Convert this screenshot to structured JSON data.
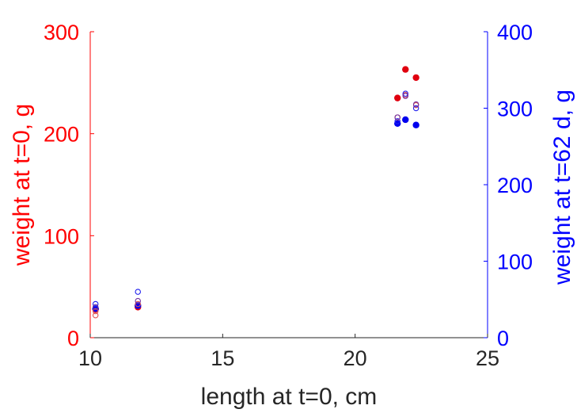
{
  "chart_data": {
    "type": "scatter",
    "title": "",
    "xlabel": "length at t=0, cm",
    "ylabel_left": "weight at t=0, g",
    "ylabel_right": "weight at t=62 d, g",
    "xlim": [
      10,
      25
    ],
    "ylim_left": [
      0,
      300
    ],
    "ylim_right": [
      0,
      400
    ],
    "x_ticks": [
      10,
      15,
      20,
      25
    ],
    "y_ticks_left": [
      0,
      100,
      200,
      300
    ],
    "y_ticks_right": [
      0,
      100,
      200,
      300,
      400
    ],
    "grid": false,
    "legend": "none",
    "colors": {
      "left_axis": "#ff0000",
      "right_axis": "#0000ff",
      "x_axis": "#262626",
      "red_filled": "#e0000f",
      "blue_filled": "#0000ee",
      "hollow_red": "#e05050",
      "hollow_blue": "#2020ee",
      "hollow_purple": "#7030a0"
    },
    "series": [
      {
        "axis": "left",
        "marker": "filled",
        "color": "red_filled",
        "points": [
          [
            10.2,
            28
          ],
          [
            11.8,
            30
          ],
          [
            21.6,
            235
          ],
          [
            21.9,
            263
          ],
          [
            22.3,
            255
          ]
        ]
      },
      {
        "axis": "right",
        "marker": "filled",
        "color": "blue_filled",
        "points": [
          [
            10.2,
            38
          ],
          [
            11.8,
            42
          ],
          [
            21.6,
            280
          ],
          [
            21.9,
            285
          ],
          [
            22.3,
            278
          ]
        ]
      },
      {
        "axis": "left",
        "marker": "hollow",
        "color": "hollow_red",
        "points": [
          [
            10.2,
            22
          ],
          [
            10.2,
            26
          ],
          [
            11.8,
            33
          ],
          [
            21.6,
            216
          ],
          [
            21.9,
            238
          ],
          [
            22.3,
            228
          ]
        ]
      },
      {
        "axis": "right",
        "marker": "hollow",
        "color": "hollow_blue",
        "points": [
          [
            10.2,
            44
          ],
          [
            11.8,
            60
          ],
          [
            21.6,
            283
          ],
          [
            21.9,
            319
          ],
          [
            22.3,
            300
          ]
        ]
      },
      {
        "axis": "right",
        "marker": "hollow",
        "color": "hollow_purple",
        "points": [
          [
            10.2,
            40
          ],
          [
            11.8,
            48
          ],
          [
            21.6,
            288
          ],
          [
            21.9,
            316
          ],
          [
            22.3,
            305
          ]
        ]
      }
    ]
  }
}
